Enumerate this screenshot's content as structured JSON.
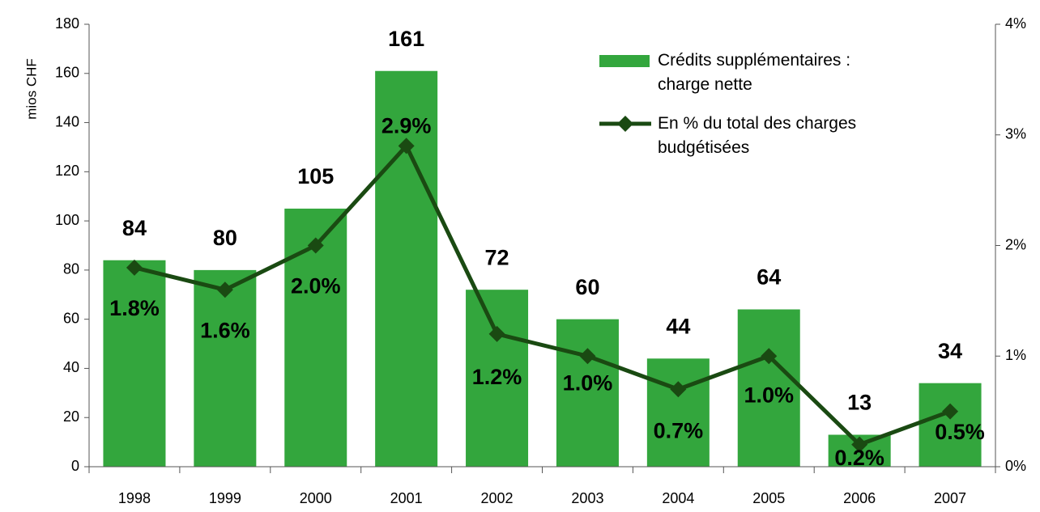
{
  "chart_data": {
    "type": "bar",
    "y_label": "mios CHF",
    "categories": [
      "1998",
      "1999",
      "2000",
      "2001",
      "2002",
      "2003",
      "2004",
      "2005",
      "2006",
      "2007"
    ],
    "series": [
      {
        "name": "Crédits supplémentaires : charge nette",
        "color": "#33a63d",
        "type": "bar",
        "values": [
          84,
          80,
          105,
          161,
          72,
          60,
          44,
          64,
          13,
          34
        ]
      },
      {
        "name": "En % du total des charges budgétisées",
        "color": "#1a4a12",
        "type": "line",
        "axis": "y2",
        "values": [
          1.8,
          1.6,
          2.0,
          2.9,
          1.2,
          1.0,
          0.7,
          1.0,
          0.2,
          0.5
        ],
        "value_labels": [
          "1.8%",
          "1.6%",
          "2.0%",
          "2.9%",
          "1.2%",
          "1.0%",
          "0.7%",
          "1.0%",
          "0.2%",
          "0.5%"
        ]
      }
    ],
    "ylim": [
      0,
      180
    ],
    "yticks": [
      0,
      20,
      40,
      60,
      80,
      100,
      120,
      140,
      160,
      180
    ],
    "y2lim": [
      0,
      4
    ],
    "y2ticks": [
      {
        "value": 0,
        "label": "0%"
      },
      {
        "value": 1,
        "label": "1%"
      },
      {
        "value": 2,
        "label": "2%"
      },
      {
        "value": 3,
        "label": "3%"
      },
      {
        "value": 4,
        "label": "4%"
      }
    ],
    "legend": "top-right"
  }
}
